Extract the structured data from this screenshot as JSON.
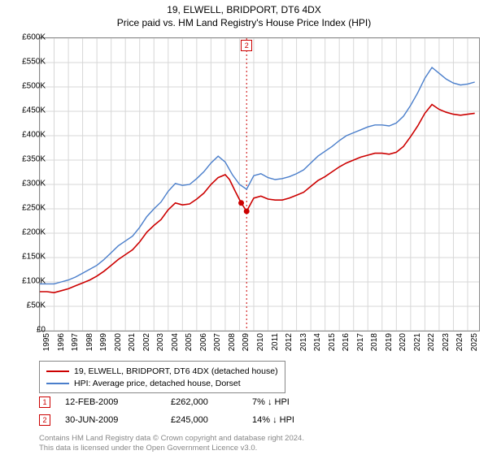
{
  "title_line1": "19, ELWELL, BRIDPORT, DT6 4DX",
  "title_line2": "Price paid vs. HM Land Registry's House Price Index (HPI)",
  "chart": {
    "type": "line",
    "plot_bg": "#ffffff",
    "grid_color": "#d7d7d7",
    "border_color": "#888888",
    "ylim": [
      0,
      600000
    ],
    "ytick_step": 50000,
    "yticks": [
      "£0",
      "£50K",
      "£100K",
      "£150K",
      "£200K",
      "£250K",
      "£300K",
      "£350K",
      "£400K",
      "£450K",
      "£500K",
      "£550K",
      "£600K"
    ],
    "x_start": 1995,
    "x_end": 2025.8,
    "xticks": [
      1995,
      1996,
      1997,
      1998,
      1999,
      2000,
      2001,
      2002,
      2003,
      2004,
      2005,
      2006,
      2007,
      2008,
      2009,
      2010,
      2011,
      2012,
      2013,
      2014,
      2015,
      2016,
      2017,
      2018,
      2019,
      2020,
      2021,
      2022,
      2023,
      2024,
      2025
    ],
    "marker2_x": 2009.5,
    "vline_color": "#cc0000",
    "vline_dash": "2,3",
    "series": [
      {
        "name": "19, ELWELL, BRIDPORT, DT6 4DX (detached house)",
        "color": "#cc0000",
        "width": 1.6,
        "points": [
          [
            1995.0,
            80000
          ],
          [
            1995.5,
            80000
          ],
          [
            1996.0,
            78000
          ],
          [
            1996.5,
            82000
          ],
          [
            1997.0,
            86000
          ],
          [
            1997.5,
            92000
          ],
          [
            1998.0,
            98000
          ],
          [
            1998.5,
            104000
          ],
          [
            1999.0,
            112000
          ],
          [
            1999.5,
            122000
          ],
          [
            2000.0,
            134000
          ],
          [
            2000.5,
            146000
          ],
          [
            2001.0,
            156000
          ],
          [
            2001.5,
            166000
          ],
          [
            2002.0,
            182000
          ],
          [
            2002.5,
            202000
          ],
          [
            2003.0,
            216000
          ],
          [
            2003.5,
            228000
          ],
          [
            2004.0,
            248000
          ],
          [
            2004.5,
            262000
          ],
          [
            2005.0,
            258000
          ],
          [
            2005.5,
            260000
          ],
          [
            2006.0,
            270000
          ],
          [
            2006.5,
            282000
          ],
          [
            2007.0,
            300000
          ],
          [
            2007.5,
            314000
          ],
          [
            2008.0,
            320000
          ],
          [
            2008.3,
            310000
          ],
          [
            2008.7,
            286000
          ],
          [
            2009.12,
            262000
          ],
          [
            2009.5,
            245000
          ],
          [
            2010.0,
            272000
          ],
          [
            2010.5,
            276000
          ],
          [
            2011.0,
            270000
          ],
          [
            2011.5,
            268000
          ],
          [
            2012.0,
            268000
          ],
          [
            2012.5,
            272000
          ],
          [
            2013.0,
            278000
          ],
          [
            2013.5,
            284000
          ],
          [
            2014.0,
            296000
          ],
          [
            2014.5,
            308000
          ],
          [
            2015.0,
            316000
          ],
          [
            2015.5,
            326000
          ],
          [
            2016.0,
            336000
          ],
          [
            2016.5,
            344000
          ],
          [
            2017.0,
            350000
          ],
          [
            2017.5,
            356000
          ],
          [
            2018.0,
            360000
          ],
          [
            2018.5,
            364000
          ],
          [
            2019.0,
            364000
          ],
          [
            2019.5,
            362000
          ],
          [
            2020.0,
            366000
          ],
          [
            2020.5,
            378000
          ],
          [
            2021.0,
            398000
          ],
          [
            2021.5,
            420000
          ],
          [
            2022.0,
            446000
          ],
          [
            2022.5,
            464000
          ],
          [
            2023.0,
            454000
          ],
          [
            2023.5,
            448000
          ],
          [
            2024.0,
            444000
          ],
          [
            2024.5,
            442000
          ],
          [
            2025.0,
            444000
          ],
          [
            2025.5,
            446000
          ]
        ]
      },
      {
        "name": "HPI: Average price, detached house, Dorset",
        "color": "#4a7ecb",
        "width": 1.4,
        "points": [
          [
            1995.0,
            96000
          ],
          [
            1995.5,
            96000
          ],
          [
            1996.0,
            96000
          ],
          [
            1996.5,
            100000
          ],
          [
            1997.0,
            104000
          ],
          [
            1997.5,
            110000
          ],
          [
            1998.0,
            118000
          ],
          [
            1998.5,
            126000
          ],
          [
            1999.0,
            134000
          ],
          [
            1999.5,
            146000
          ],
          [
            2000.0,
            160000
          ],
          [
            2000.5,
            174000
          ],
          [
            2001.0,
            184000
          ],
          [
            2001.5,
            194000
          ],
          [
            2002.0,
            212000
          ],
          [
            2002.5,
            234000
          ],
          [
            2003.0,
            250000
          ],
          [
            2003.5,
            264000
          ],
          [
            2004.0,
            286000
          ],
          [
            2004.5,
            302000
          ],
          [
            2005.0,
            298000
          ],
          [
            2005.5,
            300000
          ],
          [
            2006.0,
            312000
          ],
          [
            2006.5,
            326000
          ],
          [
            2007.0,
            344000
          ],
          [
            2007.5,
            358000
          ],
          [
            2008.0,
            346000
          ],
          [
            2008.5,
            320000
          ],
          [
            2009.0,
            300000
          ],
          [
            2009.5,
            290000
          ],
          [
            2010.0,
            318000
          ],
          [
            2010.5,
            322000
          ],
          [
            2011.0,
            314000
          ],
          [
            2011.5,
            310000
          ],
          [
            2012.0,
            312000
          ],
          [
            2012.5,
            316000
          ],
          [
            2013.0,
            322000
          ],
          [
            2013.5,
            330000
          ],
          [
            2014.0,
            344000
          ],
          [
            2014.5,
            358000
          ],
          [
            2015.0,
            368000
          ],
          [
            2015.5,
            378000
          ],
          [
            2016.0,
            390000
          ],
          [
            2016.5,
            400000
          ],
          [
            2017.0,
            406000
          ],
          [
            2017.5,
            412000
          ],
          [
            2018.0,
            418000
          ],
          [
            2018.5,
            422000
          ],
          [
            2019.0,
            422000
          ],
          [
            2019.5,
            420000
          ],
          [
            2020.0,
            426000
          ],
          [
            2020.5,
            440000
          ],
          [
            2021.0,
            462000
          ],
          [
            2021.5,
            488000
          ],
          [
            2022.0,
            518000
          ],
          [
            2022.5,
            540000
          ],
          [
            2023.0,
            528000
          ],
          [
            2023.5,
            516000
          ],
          [
            2024.0,
            508000
          ],
          [
            2024.5,
            504000
          ],
          [
            2025.0,
            506000
          ],
          [
            2025.5,
            510000
          ]
        ]
      }
    ],
    "sale_points": [
      {
        "x": 2009.12,
        "y": 262000
      },
      {
        "x": 2009.5,
        "y": 245000
      }
    ]
  },
  "legend": {
    "series1_label": "19, ELWELL, BRIDPORT, DT6 4DX (detached house)",
    "series1_color": "#cc0000",
    "series2_label": "HPI: Average price, detached house, Dorset",
    "series2_color": "#4a7ecb"
  },
  "sales": [
    {
      "num": "1",
      "date": "12-FEB-2009",
      "price": "£262,000",
      "pct": "7% ↓ HPI"
    },
    {
      "num": "2",
      "date": "30-JUN-2009",
      "price": "£245,000",
      "pct": "14% ↓ HPI"
    }
  ],
  "fineprint_l1": "Contains HM Land Registry data © Crown copyright and database right 2024.",
  "fineprint_l2": "This data is licensed under the Open Government Licence v3.0."
}
